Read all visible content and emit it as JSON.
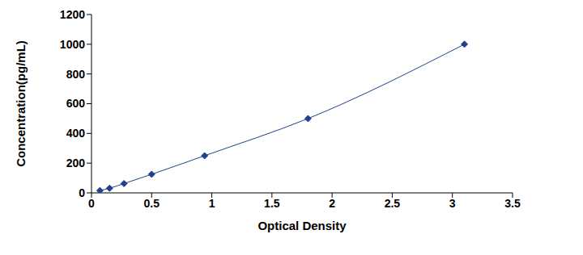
{
  "chart_data": {
    "type": "line",
    "x_label": "Optical Density",
    "y_label": "Concentration(pg/mL)",
    "x": [
      0.07,
      0.15,
      0.27,
      0.5,
      0.94,
      1.8,
      3.1
    ],
    "values": [
      15.6,
      31.2,
      62.5,
      125,
      250,
      500,
      1000
    ],
    "xlim": [
      0,
      3.5
    ],
    "xticks": [
      0,
      0.5,
      1,
      1.5,
      2,
      2.5,
      3,
      3.5
    ],
    "ylim": [
      0,
      1200
    ],
    "yticks": [
      0,
      200,
      400,
      600,
      800,
      1000,
      1200
    ],
    "color": "#1f3f8f",
    "marker": "diamond",
    "line_style": "solid",
    "grid": false
  }
}
